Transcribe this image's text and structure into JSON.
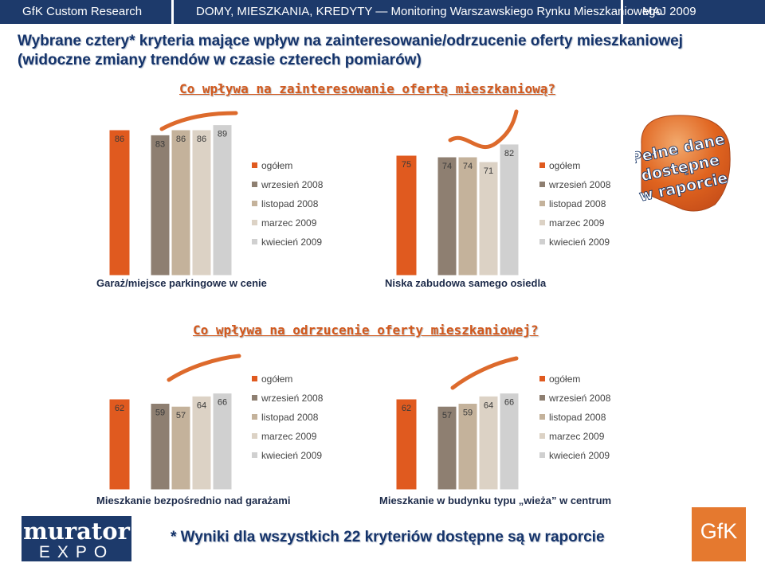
{
  "header": {
    "brand": "GfK Custom Research",
    "title": "DOMY, MIESZKANIA, KREDYTY — Monitoring Warszawskiego Rynku Mieszkaniowego",
    "date": "MAJ 2009"
  },
  "main_title_line1": "Wybrane cztery* kryteria mające wpływ na zainteresowanie/odrzucenie oferty mieszkaniowej",
  "main_title_line2": "(widoczne zmiany trendów w czasie czterech pomiarów)",
  "question_interest": "Co wpływa na zainteresowanie ofertą mieszkaniową?",
  "question_reject": "Co wpływa na odrzucenie oferty mieszkaniowej?",
  "badge": {
    "line1": "Pełne dane",
    "line2": "dostępne",
    "line3": "w raporcie"
  },
  "footer": {
    "note": "* Wyniki dla wszystkich 22 kryteriów dostępne są w raporcie",
    "logo_left_top": "murator",
    "logo_left_bottom": "EXPO",
    "logo_right": "GfK"
  },
  "colors": {
    "header_bg": "#1d3a6b",
    "accent": "#d2591e",
    "series": [
      "#e05a1f",
      "#8e7f71",
      "#c4b29b",
      "#dcd2c5",
      "#d0d0d0"
    ]
  },
  "chart_data": [
    {
      "type": "bar",
      "title": "Garaż/miejsce parkingowe w cenie",
      "categories": [
        "ogółem",
        "wrzesień 2008",
        "listopad 2008",
        "marzec 2009",
        "kwiecień 2009"
      ],
      "values": [
        86,
        83,
        86,
        86,
        89
      ],
      "ylim": [
        0,
        100
      ],
      "legend": "right",
      "grid": false
    },
    {
      "type": "bar",
      "title": "Niska zabudowa samego osiedla",
      "categories": [
        "ogółem",
        "wrzesień 2008",
        "listopad 2008",
        "marzec 2009",
        "kwiecień 2009"
      ],
      "values": [
        75,
        74,
        74,
        71,
        82
      ],
      "ylim": [
        0,
        100
      ],
      "legend": "right",
      "grid": false
    },
    {
      "type": "bar",
      "title": "Mieszkanie bezpośrednio nad garażami",
      "categories": [
        "ogółem",
        "wrzesień 2008",
        "listopad 2008",
        "marzec 2009",
        "kwiecień 2009"
      ],
      "values": [
        62,
        59,
        57,
        64,
        66
      ],
      "ylim": [
        0,
        100
      ],
      "legend": "right",
      "grid": false
    },
    {
      "type": "bar",
      "title": "Mieszkanie w budynku typu „wieża” w centrum",
      "categories": [
        "ogółem",
        "wrzesień 2008",
        "listopad 2008",
        "marzec 2009",
        "kwiecień 2009"
      ],
      "values": [
        62,
        57,
        59,
        64,
        66
      ],
      "ylim": [
        0,
        100
      ],
      "legend": "right",
      "grid": false
    }
  ]
}
